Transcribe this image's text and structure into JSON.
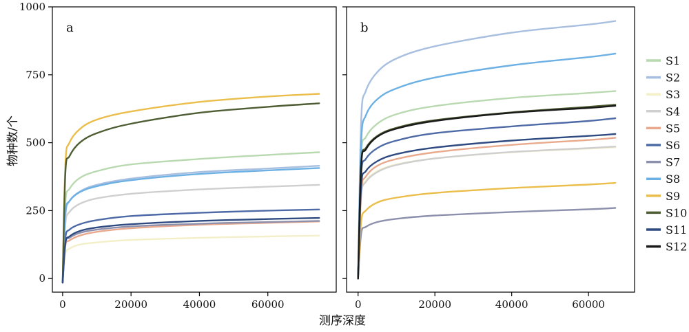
{
  "chart_data": {
    "type": "line",
    "ylabel": "物种数/个",
    "xlabel": "测序深度",
    "ylim": [
      -50,
      1000
    ],
    "yticks": [
      0,
      250,
      500,
      750,
      1000
    ],
    "legend_placement": "right",
    "series_meta": [
      {
        "name": "S1",
        "color": "#b9d9b0"
      },
      {
        "name": "S2",
        "color": "#a8bfe0"
      },
      {
        "name": "S3",
        "color": "#f3efc9"
      },
      {
        "name": "S4",
        "color": "#cfcfcf"
      },
      {
        "name": "S5",
        "color": "#e9a98d"
      },
      {
        "name": "S6",
        "color": "#4d6aa6"
      },
      {
        "name": "S7",
        "color": "#8d90ad"
      },
      {
        "name": "S8",
        "color": "#6cb0e4"
      },
      {
        "name": "S9",
        "color": "#ebbd4a"
      },
      {
        "name": "S10",
        "color": "#4e5d33"
      },
      {
        "name": "S11",
        "color": "#2e4a80"
      },
      {
        "name": "S12",
        "color": "#1a1a1a"
      }
    ],
    "panels": [
      {
        "label": "a",
        "xlim": [
          -3000,
          80000
        ],
        "xticks": [
          0,
          20000,
          40000,
          60000
        ],
        "series": [
          {
            "name": "S1",
            "x": [
              0,
              800,
              2000,
              5000,
              10000,
              20000,
              40000,
              60000,
              75000
            ],
            "y": [
              -15,
              280,
              330,
              370,
              395,
              420,
              440,
              455,
              465
            ]
          },
          {
            "name": "S2",
            "x": [
              0,
              800,
              2000,
              5000,
              10000,
              20000,
              40000,
              60000,
              75000
            ],
            "y": [
              -15,
              230,
              285,
              320,
              345,
              368,
              392,
              405,
              415
            ]
          },
          {
            "name": "S3",
            "x": [
              0,
              800,
              2000,
              5000,
              10000,
              20000,
              40000,
              60000,
              75000
            ],
            "y": [
              -15,
              90,
              110,
              125,
              133,
              142,
              150,
              155,
              158
            ]
          },
          {
            "name": "S4",
            "x": [
              0,
              800,
              2000,
              5000,
              10000,
              20000,
              40000,
              60000,
              75000
            ],
            "y": [
              -15,
              200,
              245,
              275,
              295,
              312,
              328,
              338,
              345
            ]
          },
          {
            "name": "S5",
            "x": [
              0,
              800,
              2000,
              5000,
              10000,
              20000,
              40000,
              60000,
              75000
            ],
            "y": [
              -15,
              120,
              140,
              158,
              172,
              185,
              198,
              205,
              210
            ]
          },
          {
            "name": "S6",
            "x": [
              0,
              800,
              2000,
              5000,
              10000,
              20000,
              40000,
              60000,
              75000
            ],
            "y": [
              -15,
              150,
              180,
              200,
              215,
              230,
              242,
              250,
              254
            ]
          },
          {
            "name": "S7",
            "x": [
              0,
              800,
              2000,
              5000,
              10000,
              20000,
              40000,
              60000,
              75000
            ],
            "y": [
              -15,
              130,
              150,
              168,
              180,
              192,
              202,
              208,
              212
            ]
          },
          {
            "name": "S8",
            "x": [
              0,
              800,
              2000,
              5000,
              10000,
              20000,
              40000,
              60000,
              75000
            ],
            "y": [
              -15,
              240,
              285,
              318,
              340,
              362,
              385,
              398,
              407
            ]
          },
          {
            "name": "S9",
            "x": [
              0,
              800,
              2000,
              5000,
              10000,
              20000,
              40000,
              60000,
              75000
            ],
            "y": [
              -15,
              420,
              500,
              550,
              585,
              615,
              650,
              670,
              680
            ]
          },
          {
            "name": "S10",
            "x": [
              0,
              800,
              2000,
              5000,
              10000,
              20000,
              40000,
              60000,
              75000
            ],
            "y": [
              -15,
              390,
              450,
              500,
              535,
              570,
              610,
              632,
              645
            ]
          },
          {
            "name": "S11",
            "x": [
              0,
              800,
              2000,
              5000,
              10000,
              20000,
              40000,
              60000,
              75000
            ],
            "y": [
              -15,
              130,
              155,
              175,
              188,
              200,
              212,
              219,
              223
            ]
          }
        ]
      },
      {
        "label": "b",
        "xlim": [
          -3000,
          72000
        ],
        "xticks": [
          0,
          20000,
          40000,
          60000
        ],
        "series": [
          {
            "name": "S1",
            "x": [
              0,
              800,
              2000,
              5000,
              10000,
              20000,
              40000,
              60000,
              67000
            ],
            "y": [
              0,
              450,
              520,
              570,
              605,
              635,
              665,
              683,
              690
            ]
          },
          {
            "name": "S2",
            "x": [
              0,
              800,
              2000,
              5000,
              10000,
              20000,
              40000,
              60000,
              67000
            ],
            "y": [
              0,
              580,
              690,
              760,
              810,
              855,
              905,
              935,
              948
            ]
          },
          {
            "name": "S3",
            "x": [
              0,
              800,
              2000,
              5000,
              10000,
              20000,
              40000,
              60000,
              67000
            ],
            "y": [
              0,
              310,
              360,
              395,
              420,
              442,
              465,
              478,
              483
            ]
          },
          {
            "name": "S4",
            "x": [
              0,
              800,
              2000,
              5000,
              10000,
              20000,
              40000,
              60000,
              67000
            ],
            "y": [
              0,
              300,
              355,
              392,
              418,
              442,
              466,
              480,
              486
            ]
          },
          {
            "name": "S5",
            "x": [
              0,
              800,
              2000,
              5000,
              10000,
              20000,
              40000,
              60000,
              67000
            ],
            "y": [
              0,
              320,
              375,
              415,
              440,
              465,
              492,
              510,
              518
            ]
          },
          {
            "name": "S6",
            "x": [
              0,
              800,
              2000,
              5000,
              10000,
              20000,
              40000,
              60000,
              67000
            ],
            "y": [
              0,
              380,
              440,
              480,
              508,
              535,
              560,
              580,
              590
            ]
          },
          {
            "name": "S7",
            "x": [
              0,
              800,
              2000,
              5000,
              10000,
              20000,
              40000,
              60000,
              67000
            ],
            "y": [
              0,
              165,
              190,
              208,
              220,
              232,
              245,
              255,
              260
            ]
          },
          {
            "name": "S8",
            "x": [
              0,
              800,
              2000,
              5000,
              10000,
              20000,
              40000,
              60000,
              67000
            ],
            "y": [
              0,
              500,
              600,
              660,
              700,
              740,
              785,
              815,
              828
            ]
          },
          {
            "name": "S9",
            "x": [
              0,
              800,
              2000,
              5000,
              10000,
              20000,
              40000,
              60000,
              67000
            ],
            "y": [
              0,
              210,
              250,
              280,
              298,
              315,
              333,
              346,
              352
            ]
          },
          {
            "name": "S10",
            "x": [
              0,
              800,
              2000,
              5000,
              10000,
              20000,
              40000,
              60000,
              67000
            ],
            "y": [
              0,
              420,
              480,
              525,
              555,
              583,
              612,
              632,
              640
            ]
          },
          {
            "name": "S11",
            "x": [
              0,
              800,
              2000,
              5000,
              10000,
              20000,
              40000,
              60000,
              67000
            ],
            "y": [
              0,
              340,
              395,
              432,
              458,
              482,
              508,
              525,
              532
            ]
          },
          {
            "name": "S12",
            "x": [
              0,
              800,
              2000,
              5000,
              10000,
              20000,
              40000,
              60000,
              67000
            ],
            "y": [
              0,
              415,
              475,
              522,
              552,
              580,
              610,
              628,
              636
            ]
          }
        ]
      }
    ]
  }
}
